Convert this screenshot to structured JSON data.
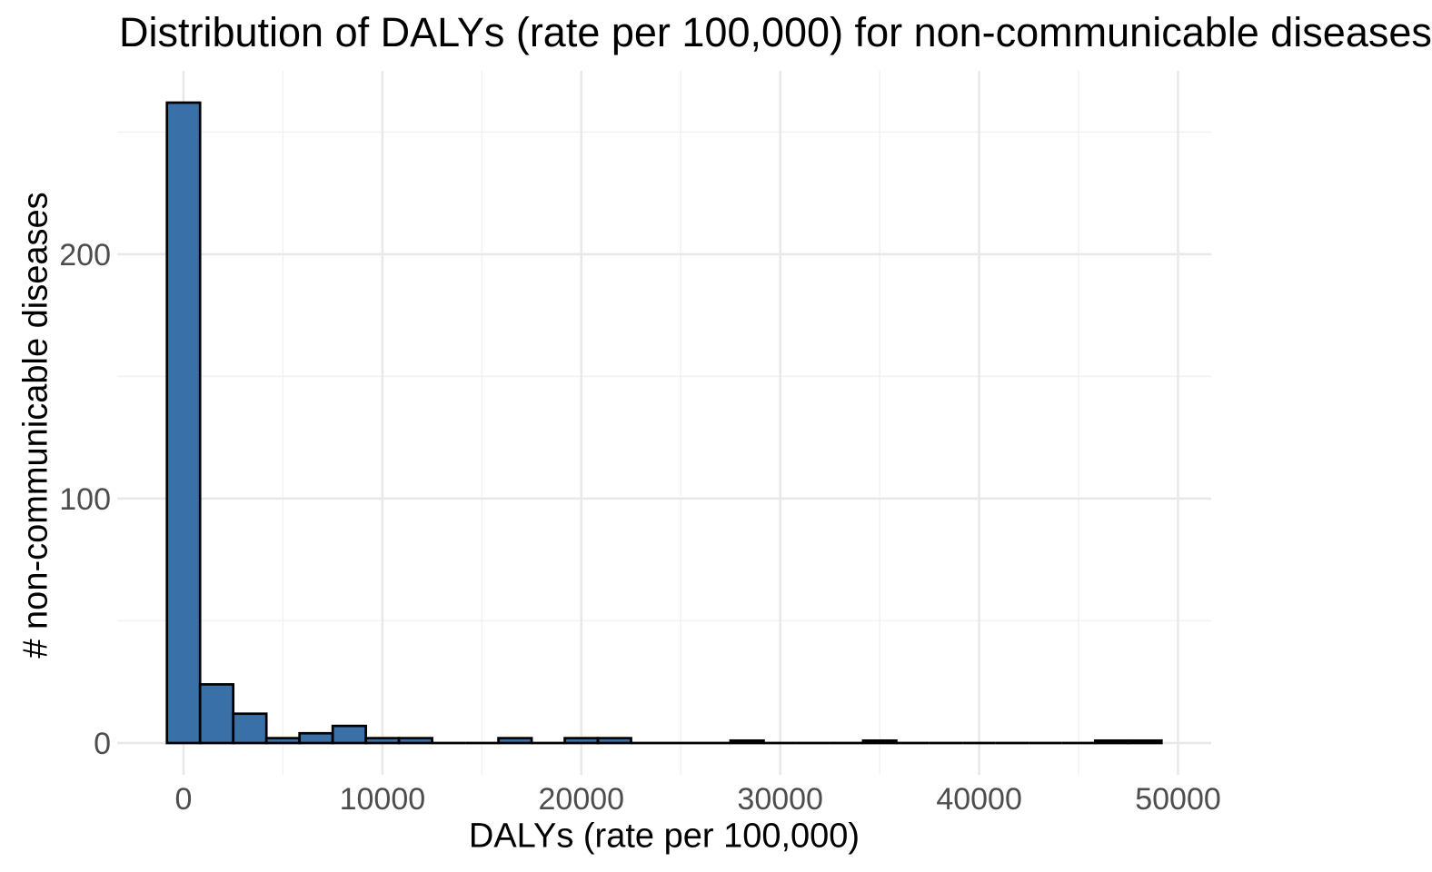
{
  "chart_data": {
    "type": "histogram",
    "title": "Distribution of DALYs (rate per 100,000) for non-communicable diseases",
    "xlabel": "DALYs (rate per 100,000)",
    "ylabel": "# non-communicable diseases",
    "x_ticks": [
      0,
      10000,
      20000,
      30000,
      40000,
      50000
    ],
    "x_minor_ticks": [
      5000,
      15000,
      25000,
      35000,
      45000
    ],
    "y_ticks": [
      0,
      100,
      200
    ],
    "y_minor_ticks": [
      50,
      150,
      250
    ],
    "xlim": [
      -3333,
      51667
    ],
    "ylim": [
      -13,
      275
    ],
    "bin_width": 1666.7,
    "bin_start_center": 0,
    "counts": [
      262,
      24,
      12,
      2,
      4,
      7,
      2,
      2,
      0,
      0,
      2,
      0,
      2,
      2,
      0,
      0,
      0,
      1,
      0,
      0,
      0,
      1,
      0,
      0,
      0,
      0,
      0,
      0,
      1,
      1
    ],
    "grid": true,
    "legend": "none",
    "colors": {
      "bar_fill": "#3A70A8",
      "bar_stroke": "#000000",
      "grid_major": "#E8E8E8",
      "grid_minor": "#F1F1F1",
      "tick_label": "#4D4D4D",
      "title_text": "#000000"
    }
  }
}
